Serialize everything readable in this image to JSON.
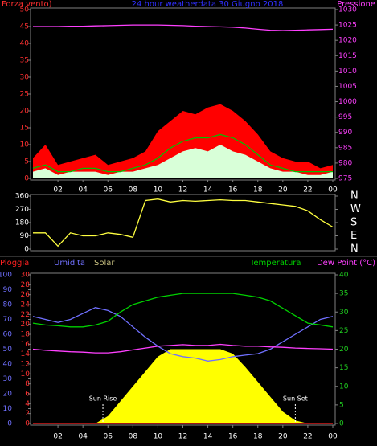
{
  "chart_data": [
    {
      "type": "line",
      "title": "24 hour weatherdata  30 Giugno 2018",
      "y_label": "Forza vento)",
      "y2_label": "Pressione",
      "x": [
        0,
        1,
        2,
        3,
        4,
        5,
        6,
        7,
        8,
        9,
        10,
        11,
        12,
        13,
        14,
        15,
        16,
        17,
        18,
        19,
        20,
        21,
        22,
        23,
        24
      ],
      "xlim": [
        0,
        24
      ],
      "xticks": [
        {
          "value": 2,
          "label": "02"
        },
        {
          "value": 4,
          "label": "04"
        },
        {
          "value": 6,
          "label": "06"
        },
        {
          "value": 8,
          "label": "08"
        },
        10,
        12,
        14,
        16,
        18,
        20,
        22,
        {
          "value": 24,
          "label": "00"
        }
      ],
      "ylim": [
        0,
        50
      ],
      "yticks": [
        0,
        5,
        10,
        15,
        20,
        25,
        30,
        35,
        40,
        45,
        50
      ],
      "y2lim": [
        975,
        1030
      ],
      "y2ticks": [
        975,
        980,
        985,
        990,
        995,
        1000,
        1005,
        1010,
        1015,
        1020,
        1025,
        1030
      ],
      "series": [
        {
          "color": "#ff0000",
          "style": "area",
          "values": [
            6,
            10,
            4,
            5,
            6,
            7,
            4,
            5,
            6,
            8,
            14,
            17,
            20,
            19,
            21,
            22,
            20,
            17,
            13,
            8,
            6,
            5,
            5,
            3,
            4
          ]
        },
        {
          "color": "#00c000",
          "values": [
            3,
            4,
            2,
            2,
            3,
            3,
            2,
            2,
            3,
            4,
            6,
            9,
            11,
            12,
            12,
            13,
            12,
            10,
            7,
            4,
            3,
            2,
            2,
            2,
            2
          ]
        },
        {
          "color": "#d8ffd8",
          "style": "area",
          "values": [
            2,
            3,
            1,
            2,
            2,
            2,
            1,
            2,
            2,
            3,
            4,
            6,
            8,
            9,
            8,
            10,
            8,
            7,
            5,
            3,
            2,
            2,
            1,
            1,
            2
          ]
        },
        {
          "color": "#ff40ff",
          "axis": "y2",
          "values": [
            1024.5,
            1024.5,
            1024.5,
            1024.6,
            1024.6,
            1024.7,
            1024.8,
            1024.9,
            1025,
            1025,
            1025,
            1024.9,
            1024.8,
            1024.6,
            1024.5,
            1024.4,
            1024.3,
            1024,
            1023.6,
            1023.3,
            1023.2,
            1023.3,
            1023.4,
            1023.5,
            1023.6
          ]
        }
      ]
    },
    {
      "type": "line",
      "x": [
        0,
        1,
        2,
        3,
        4,
        5,
        6,
        7,
        8,
        9,
        10,
        11,
        12,
        13,
        14,
        15,
        16,
        17,
        18,
        19,
        20,
        21,
        22,
        23,
        24
      ],
      "xlim": [
        0,
        24
      ],
      "ylim": [
        0,
        360
      ],
      "yticks": [
        0,
        90,
        180,
        270,
        360
      ],
      "y2lim": [
        0,
        360
      ],
      "y2ticks": [
        {
          "value": 360,
          "label": "N"
        },
        {
          "value": 270,
          "label": "W"
        },
        {
          "value": 180,
          "label": "S"
        },
        {
          "value": 90,
          "label": "E"
        },
        {
          "value": 0,
          "label": "N"
        }
      ],
      "series": [
        {
          "color": "#ffff40",
          "values": [
            110,
            110,
            20,
            110,
            90,
            90,
            110,
            100,
            80,
            330,
            340,
            320,
            330,
            325,
            330,
            335,
            330,
            330,
            320,
            310,
            300,
            290,
            260,
            200,
            150
          ]
        }
      ]
    },
    {
      "type": "line",
      "x": [
        0,
        1,
        2,
        3,
        4,
        5,
        6,
        7,
        8,
        9,
        10,
        11,
        12,
        13,
        14,
        15,
        16,
        17,
        18,
        19,
        20,
        21,
        22,
        23,
        24
      ],
      "xlim": [
        0,
        24
      ],
      "xticks": [
        {
          "value": 2,
          "label": "02"
        },
        {
          "value": 4,
          "label": "04"
        },
        {
          "value": 6,
          "label": "06"
        },
        {
          "value": 8,
          "label": "08"
        },
        10,
        12,
        14,
        16,
        18,
        20,
        22,
        {
          "value": 24,
          "label": "00"
        }
      ],
      "ylim": [
        0,
        30
      ],
      "yticks": [
        0,
        2,
        4,
        6,
        8,
        10,
        12,
        14,
        16,
        18,
        20,
        22,
        24,
        26,
        28,
        30
      ],
      "y3lim": [
        0,
        100
      ],
      "y3ticks": [
        0,
        10,
        20,
        30,
        40,
        50,
        60,
        70,
        80,
        90,
        100
      ],
      "y2lim": [
        0,
        40
      ],
      "y2ticks": [
        0,
        5,
        10,
        15,
        20,
        25,
        30,
        35,
        40
      ],
      "annotations": [
        {
          "x": 5.6,
          "label": "Sun Rise"
        },
        {
          "x": 21,
          "label": "Sun Set"
        }
      ],
      "series": [
        {
          "name": "Pioggia",
          "color": "#ff2020",
          "values": [
            0,
            0,
            0,
            0,
            0,
            0,
            0,
            0,
            0,
            0,
            0,
            0,
            0,
            0,
            0,
            0,
            0,
            0,
            0,
            0,
            0,
            0,
            0,
            0,
            0
          ]
        },
        {
          "name": "Umidita",
          "color": "#7070ff",
          "axis": "y3",
          "values": [
            72,
            70,
            68,
            70,
            74,
            78,
            76,
            72,
            65,
            58,
            52,
            47,
            45,
            44,
            42,
            43,
            45,
            46,
            47,
            50,
            55,
            60,
            65,
            70,
            72
          ]
        },
        {
          "name": "Solar",
          "color": "#ffff00",
          "axis": "y3",
          "style": "area",
          "values": [
            0,
            0,
            0,
            0,
            0,
            0,
            5,
            15,
            25,
            35,
            45,
            50,
            50,
            50,
            50,
            50,
            47,
            38,
            28,
            18,
            8,
            2,
            0,
            0,
            0
          ]
        },
        {
          "name": "Temperatura",
          "color": "#00d000",
          "axis": "y2",
          "values": [
            27,
            26.5,
            26.3,
            26,
            26,
            26.5,
            27.5,
            30,
            32,
            33,
            34,
            34.5,
            35,
            35,
            35,
            35,
            35,
            34.5,
            34,
            33,
            31,
            29,
            27,
            26.5,
            26
          ]
        },
        {
          "name": "Dew Point (°C)",
          "color": "#ff40ff",
          "axis": "y2",
          "values": [
            20,
            19.7,
            19.5,
            19.3,
            19.2,
            19,
            19,
            19.3,
            19.8,
            20.3,
            20.8,
            21,
            21.2,
            21,
            21,
            21.3,
            21,
            20.8,
            20.8,
            20.6,
            20.5,
            20.3,
            20.2,
            20.1,
            20
          ]
        }
      ]
    }
  ]
}
